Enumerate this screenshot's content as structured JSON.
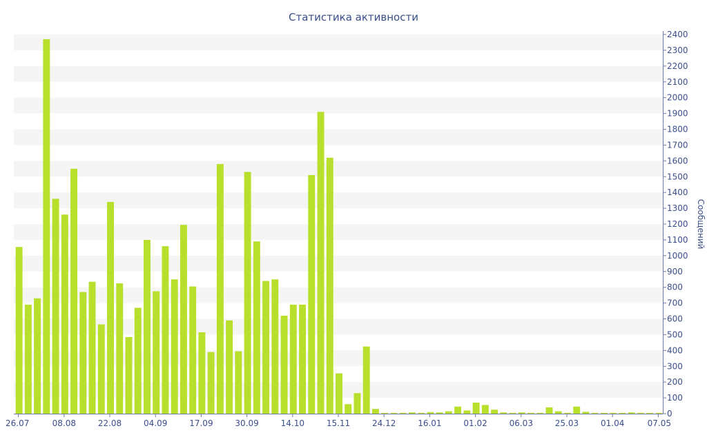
{
  "chart_data": {
    "type": "bar",
    "title": "Статистика активности",
    "ylabel": "Сообщений",
    "xlabel": "",
    "ylim": [
      0,
      2400
    ],
    "y_ticks": [
      0,
      100,
      200,
      300,
      400,
      500,
      600,
      700,
      800,
      900,
      1000,
      1100,
      1200,
      1300,
      1400,
      1500,
      1600,
      1700,
      1800,
      1900,
      2000,
      2100,
      2200,
      2300,
      2400
    ],
    "x_tick_labels": [
      {
        "index": 0,
        "label": "26.07"
      },
      {
        "index": 5,
        "label": "08.08"
      },
      {
        "index": 10,
        "label": "22.08"
      },
      {
        "index": 15,
        "label": "04.09"
      },
      {
        "index": 20,
        "label": "17.09"
      },
      {
        "index": 25,
        "label": "30.09"
      },
      {
        "index": 30,
        "label": "14.10"
      },
      {
        "index": 35,
        "label": "15.11"
      },
      {
        "index": 40,
        "label": "24.12"
      },
      {
        "index": 45,
        "label": "16.01"
      },
      {
        "index": 50,
        "label": "01.02"
      },
      {
        "index": 55,
        "label": "06.03"
      },
      {
        "index": 60,
        "label": "25.03"
      },
      {
        "index": 65,
        "label": "01.04"
      },
      {
        "index": 70,
        "label": "07.05"
      }
    ],
    "values": [
      1055,
      690,
      730,
      2370,
      1360,
      1260,
      1550,
      770,
      835,
      565,
      1340,
      825,
      485,
      670,
      1100,
      775,
      1060,
      850,
      1195,
      805,
      515,
      390,
      1580,
      590,
      395,
      1530,
      1090,
      840,
      850,
      620,
      690,
      690,
      1510,
      1910,
      1620,
      255,
      60,
      130,
      425,
      30,
      5,
      5,
      5,
      8,
      5,
      10,
      8,
      15,
      45,
      20,
      70,
      55,
      25,
      8,
      5,
      8,
      5,
      5,
      40,
      15,
      5,
      45,
      12,
      5,
      5,
      5,
      5,
      8,
      5,
      5,
      5
    ],
    "bar_color": "#b7df2c",
    "band_color": "#f5f5f5",
    "text_color": "#3a4e8a",
    "grid": "alternating horizontal bands",
    "y_axis_position": "right"
  }
}
